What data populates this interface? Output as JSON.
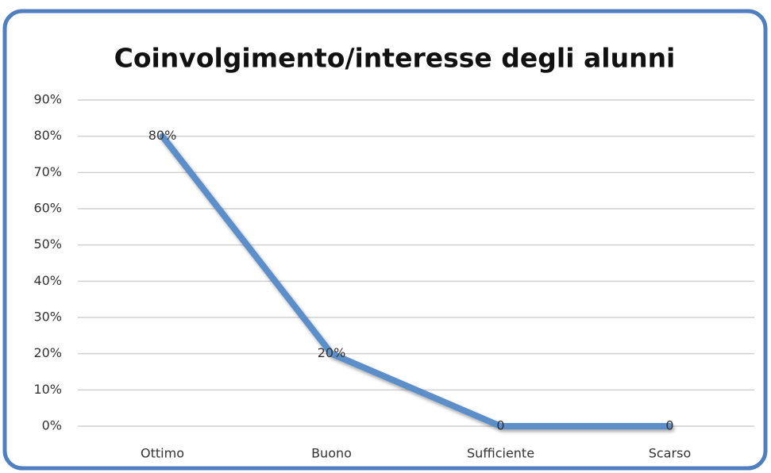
{
  "chart_data": {
    "type": "line",
    "title": "Coinvolgimento/interesse degli alunni",
    "categories": [
      "Ottimo",
      "Buono",
      "Sufficiente",
      "Scarso"
    ],
    "series": [
      {
        "color": "#5b8ec9",
        "values": [
          80,
          20,
          0,
          0
        ],
        "value_labels": [
          "80%",
          "20%",
          "0",
          "0"
        ]
      }
    ],
    "ylim": [
      0,
      90
    ],
    "yticks": [
      {
        "value": 0,
        "label": "0%"
      },
      {
        "value": 10,
        "label": "10%"
      },
      {
        "value": 20,
        "label": "20%"
      },
      {
        "value": 30,
        "label": "30%"
      },
      {
        "value": 40,
        "label": "40%"
      },
      {
        "value": 50,
        "label": "50%"
      },
      {
        "value": 60,
        "label": "60%"
      },
      {
        "value": 70,
        "label": "70%"
      },
      {
        "value": 80,
        "label": "80%"
      },
      {
        "value": 90,
        "label": "90%"
      }
    ],
    "grid": true
  }
}
